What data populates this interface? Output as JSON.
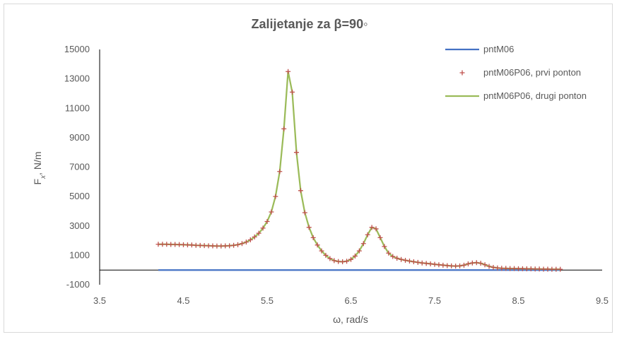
{
  "chart_data": {
    "type": "line",
    "title": "Zalijetanje za β=90◦",
    "xlabel": "ω, rad/s",
    "ylabel_main": "F",
    "ylabel_sub": "x",
    "ylabel_rest": ", N/m",
    "xlim": [
      3.5,
      9.5
    ],
    "ylim": [
      -1000,
      15000
    ],
    "xticks": [
      3.5,
      4.5,
      5.5,
      6.5,
      7.5,
      8.5,
      9.5
    ],
    "yticks": [
      -1000,
      1000,
      3000,
      5000,
      7000,
      9000,
      11000,
      13000,
      15000
    ],
    "xtick_labels": [
      "3.5",
      "4.5",
      "5.5",
      "6.5",
      "7.5",
      "8.5",
      "9.5"
    ],
    "ytick_labels": [
      "-1000",
      "1000",
      "3000",
      "5000",
      "7000",
      "9000",
      "11000",
      "13000",
      "15000"
    ],
    "grid": false,
    "legend": "right",
    "series": [
      {
        "name": "pntM06",
        "style": "line",
        "color": "#4472c4",
        "x": [
          4.2,
          9.0
        ],
        "y": [
          0,
          0
        ]
      },
      {
        "name": "pntM06P06, prvi ponton",
        "style": "markers",
        "color": "#c0504d",
        "x": [
          4.2,
          4.25,
          4.3,
          4.35,
          4.4,
          4.45,
          4.5,
          4.55,
          4.6,
          4.65,
          4.7,
          4.75,
          4.8,
          4.85,
          4.9,
          4.95,
          5.0,
          5.05,
          5.1,
          5.15,
          5.2,
          5.25,
          5.3,
          5.35,
          5.4,
          5.45,
          5.5,
          5.55,
          5.6,
          5.65,
          5.7,
          5.75,
          5.8,
          5.85,
          5.9,
          5.95,
          6.0,
          6.05,
          6.1,
          6.15,
          6.2,
          6.25,
          6.3,
          6.35,
          6.4,
          6.45,
          6.5,
          6.55,
          6.6,
          6.65,
          6.7,
          6.75,
          6.8,
          6.85,
          6.9,
          6.95,
          7.0,
          7.05,
          7.1,
          7.15,
          7.2,
          7.25,
          7.3,
          7.35,
          7.4,
          7.45,
          7.5,
          7.55,
          7.6,
          7.65,
          7.7,
          7.75,
          7.8,
          7.85,
          7.9,
          7.95,
          8.0,
          8.05,
          8.1,
          8.15,
          8.2,
          8.25,
          8.3,
          8.35,
          8.4,
          8.45,
          8.5,
          8.55,
          8.6,
          8.65,
          8.7,
          8.75,
          8.8,
          8.85,
          8.9,
          8.95,
          9.0
        ],
        "y": [
          1750,
          1750,
          1750,
          1740,
          1740,
          1730,
          1720,
          1710,
          1700,
          1680,
          1670,
          1660,
          1650,
          1640,
          1630,
          1630,
          1640,
          1650,
          1680,
          1720,
          1800,
          1900,
          2050,
          2250,
          2500,
          2850,
          3300,
          3950,
          5000,
          6700,
          9600,
          13500,
          12100,
          8000,
          5400,
          3900,
          2900,
          2200,
          1700,
          1300,
          1000,
          780,
          640,
          580,
          560,
          600,
          720,
          950,
          1300,
          1800,
          2400,
          2900,
          2800,
          2200,
          1600,
          1150,
          920,
          800,
          720,
          660,
          610,
          560,
          520,
          480,
          450,
          420,
          390,
          360,
          330,
          300,
          280,
          270,
          280,
          330,
          420,
          480,
          500,
          460,
          360,
          250,
          180,
          140,
          120,
          110,
          100,
          100,
          90,
          90,
          80,
          80,
          70,
          70,
          60,
          60,
          50,
          50,
          50
        ]
      },
      {
        "name": "pntM06P06, drugi ponton",
        "style": "line",
        "color": "#9bbb59",
        "x": [
          4.2,
          4.25,
          4.3,
          4.35,
          4.4,
          4.45,
          4.5,
          4.55,
          4.6,
          4.65,
          4.7,
          4.75,
          4.8,
          4.85,
          4.9,
          4.95,
          5.0,
          5.05,
          5.1,
          5.15,
          5.2,
          5.25,
          5.3,
          5.35,
          5.4,
          5.45,
          5.5,
          5.55,
          5.6,
          5.65,
          5.7,
          5.75,
          5.8,
          5.85,
          5.9,
          5.95,
          6.0,
          6.05,
          6.1,
          6.15,
          6.2,
          6.25,
          6.3,
          6.35,
          6.4,
          6.45,
          6.5,
          6.55,
          6.6,
          6.65,
          6.7,
          6.75,
          6.8,
          6.85,
          6.9,
          6.95,
          7.0,
          7.05,
          7.1,
          7.15,
          7.2,
          7.25,
          7.3,
          7.35,
          7.4,
          7.45,
          7.5,
          7.55,
          7.6,
          7.65,
          7.7,
          7.75,
          7.8,
          7.85,
          7.9,
          7.95,
          8.0,
          8.05,
          8.1,
          8.15,
          8.2,
          8.25,
          8.3,
          8.35,
          8.4,
          8.45,
          8.5,
          8.55,
          8.6,
          8.65,
          8.7,
          8.75,
          8.8,
          8.85,
          8.9,
          8.95,
          9.0
        ],
        "y": [
          1750,
          1750,
          1750,
          1740,
          1740,
          1730,
          1720,
          1710,
          1700,
          1680,
          1670,
          1660,
          1650,
          1640,
          1630,
          1630,
          1640,
          1650,
          1680,
          1720,
          1800,
          1900,
          2050,
          2250,
          2500,
          2850,
          3300,
          3950,
          5000,
          6700,
          9600,
          13500,
          12100,
          8000,
          5400,
          3900,
          2900,
          2200,
          1700,
          1300,
          1000,
          780,
          640,
          580,
          560,
          600,
          720,
          950,
          1300,
          1800,
          2400,
          2900,
          2800,
          2200,
          1600,
          1150,
          920,
          800,
          720,
          660,
          610,
          560,
          520,
          480,
          450,
          420,
          390,
          360,
          330,
          300,
          280,
          270,
          280,
          330,
          420,
          480,
          500,
          460,
          360,
          250,
          180,
          140,
          120,
          110,
          100,
          100,
          90,
          90,
          80,
          80,
          70,
          70,
          60,
          60,
          50,
          50,
          50
        ]
      }
    ]
  }
}
